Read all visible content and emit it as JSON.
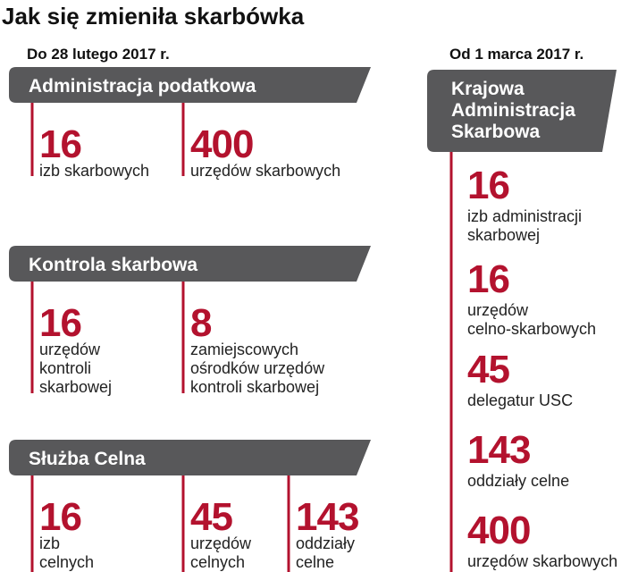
{
  "title": "Jak się zmieniła skarbówka",
  "before": {
    "date": "Do 28 lutego 2017 r.",
    "sections": [
      {
        "title": "Administracja podatkowa",
        "items": [
          {
            "number": 16,
            "label": [
              "izb skarbowych"
            ]
          },
          {
            "number": 400,
            "label": [
              "urzędów skarbowych"
            ]
          }
        ]
      },
      {
        "title": "Kontrola skarbowa",
        "items": [
          {
            "number": 16,
            "label": [
              "urzędów",
              "kontroli",
              "skarbowej"
            ]
          },
          {
            "number": 8,
            "label": [
              "zamiejscowych",
              "ośrodków urzędów",
              "kontroli skarbowej"
            ]
          }
        ]
      },
      {
        "title": "Służba Celna",
        "items": [
          {
            "number": 16,
            "label": [
              "izb",
              "celnych"
            ]
          },
          {
            "number": 45,
            "label": [
              "urzędów",
              "celnych"
            ]
          },
          {
            "number": 143,
            "label": [
              "oddziały",
              "celne"
            ]
          }
        ]
      }
    ]
  },
  "after": {
    "date": "Od 1 marca 2017 r.",
    "title": [
      "Krajowa",
      "Administracja",
      "Skarbowa"
    ],
    "items": [
      {
        "number": 16,
        "label": [
          "izb administracji",
          "skarbowej"
        ]
      },
      {
        "number": 16,
        "label": [
          "urzędów",
          "celno-skarbowych"
        ]
      },
      {
        "number": 45,
        "label": [
          "delegatur USC"
        ]
      },
      {
        "number": 143,
        "label": [
          "oddziały celne"
        ]
      },
      {
        "number": 400,
        "label": [
          "urzędów skarbowych"
        ]
      }
    ]
  }
}
